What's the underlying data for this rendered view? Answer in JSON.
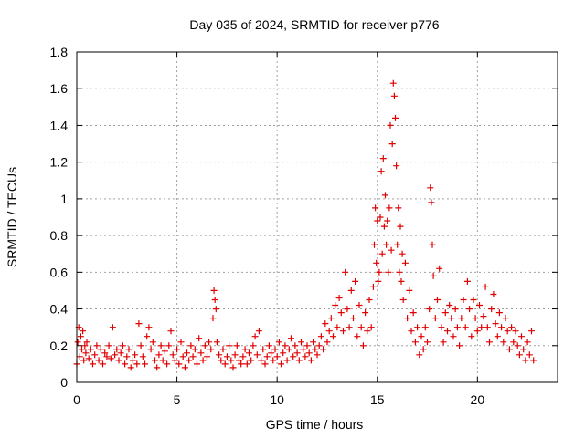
{
  "chart_data": {
    "type": "scatter",
    "title": "Day 035 of 2024, SRMTID for receiver p776",
    "xlabel": "GPS time / hours",
    "ylabel": "SRMTID / TECUs",
    "xlim": [
      0,
      24
    ],
    "ylim": [
      0,
      1.8
    ],
    "xticks": [
      "0",
      "5",
      "10",
      "15",
      "20"
    ],
    "xtick_values": [
      0,
      5,
      10,
      15,
      20
    ],
    "yticks": [
      "0",
      "0.2",
      "0.4",
      "0.6",
      "0.8",
      "1",
      "1.2",
      "1.4",
      "1.6",
      "1.8"
    ],
    "ytick_values": [
      0,
      0.2,
      0.4,
      0.6,
      0.8,
      1.0,
      1.2,
      1.4,
      1.6,
      1.8
    ],
    "grid": true,
    "marker": "+",
    "marker_color": "#e00000",
    "series": [
      {
        "name": "SRMTID",
        "points": [
          [
            0.0,
            0.1
          ],
          [
            0.05,
            0.22
          ],
          [
            0.1,
            0.3
          ],
          [
            0.15,
            0.14
          ],
          [
            0.2,
            0.25
          ],
          [
            0.25,
            0.18
          ],
          [
            0.3,
            0.28
          ],
          [
            0.35,
            0.12
          ],
          [
            0.4,
            0.2
          ],
          [
            0.45,
            0.16
          ],
          [
            0.5,
            0.22
          ],
          [
            0.6,
            0.13
          ],
          [
            0.7,
            0.18
          ],
          [
            0.8,
            0.1
          ],
          [
            0.9,
            0.15
          ],
          [
            1.0,
            0.2
          ],
          [
            1.1,
            0.12
          ],
          [
            1.2,
            0.18
          ],
          [
            1.3,
            0.1
          ],
          [
            1.4,
            0.16
          ],
          [
            1.5,
            0.14
          ],
          [
            1.6,
            0.2
          ],
          [
            1.7,
            0.13
          ],
          [
            1.8,
            0.3
          ],
          [
            1.9,
            0.15
          ],
          [
            2.0,
            0.18
          ],
          [
            2.1,
            0.12
          ],
          [
            2.2,
            0.16
          ],
          [
            2.3,
            0.2
          ],
          [
            2.4,
            0.1
          ],
          [
            2.5,
            0.14
          ],
          [
            2.6,
            0.18
          ],
          [
            2.7,
            0.08
          ],
          [
            2.8,
            0.12
          ],
          [
            2.9,
            0.15
          ],
          [
            3.0,
            0.1
          ],
          [
            3.1,
            0.32
          ],
          [
            3.2,
            0.2
          ],
          [
            3.3,
            0.14
          ],
          [
            3.4,
            0.1
          ],
          [
            3.5,
            0.25
          ],
          [
            3.6,
            0.3
          ],
          [
            3.7,
            0.18
          ],
          [
            3.8,
            0.22
          ],
          [
            3.9,
            0.12
          ],
          [
            4.0,
            0.08
          ],
          [
            4.1,
            0.15
          ],
          [
            4.2,
            0.2
          ],
          [
            4.3,
            0.12
          ],
          [
            4.4,
            0.17
          ],
          [
            4.5,
            0.1
          ],
          [
            4.6,
            0.2
          ],
          [
            4.7,
            0.28
          ],
          [
            4.8,
            0.15
          ],
          [
            4.9,
            0.12
          ],
          [
            5.0,
            0.18
          ],
          [
            5.1,
            0.1
          ],
          [
            5.2,
            0.22
          ],
          [
            5.3,
            0.14
          ],
          [
            5.4,
            0.08
          ],
          [
            5.5,
            0.16
          ],
          [
            5.6,
            0.12
          ],
          [
            5.7,
            0.2
          ],
          [
            5.8,
            0.14
          ],
          [
            5.9,
            0.18
          ],
          [
            6.0,
            0.1
          ],
          [
            6.1,
            0.24
          ],
          [
            6.2,
            0.16
          ],
          [
            6.3,
            0.12
          ],
          [
            6.4,
            0.2
          ],
          [
            6.5,
            0.14
          ],
          [
            6.6,
            0.22
          ],
          [
            6.7,
            0.18
          ],
          [
            6.8,
            0.35
          ],
          [
            6.85,
            0.5
          ],
          [
            6.9,
            0.45
          ],
          [
            6.95,
            0.4
          ],
          [
            7.0,
            0.22
          ],
          [
            7.1,
            0.15
          ],
          [
            7.2,
            0.12
          ],
          [
            7.3,
            0.18
          ],
          [
            7.4,
            0.1
          ],
          [
            7.5,
            0.14
          ],
          [
            7.6,
            0.2
          ],
          [
            7.7,
            0.12
          ],
          [
            7.8,
            0.08
          ],
          [
            7.9,
            0.15
          ],
          [
            8.0,
            0.2
          ],
          [
            8.1,
            0.12
          ],
          [
            8.2,
            0.1
          ],
          [
            8.3,
            0.14
          ],
          [
            8.4,
            0.18
          ],
          [
            8.5,
            0.1
          ],
          [
            8.6,
            0.16
          ],
          [
            8.7,
            0.12
          ],
          [
            8.8,
            0.2
          ],
          [
            8.9,
            0.25
          ],
          [
            9.0,
            0.15
          ],
          [
            9.1,
            0.28
          ],
          [
            9.2,
            0.12
          ],
          [
            9.3,
            0.18
          ],
          [
            9.4,
            0.1
          ],
          [
            9.5,
            0.14
          ],
          [
            9.6,
            0.2
          ],
          [
            9.7,
            0.16
          ],
          [
            9.8,
            0.12
          ],
          [
            9.9,
            0.18
          ],
          [
            10.0,
            0.14
          ],
          [
            10.1,
            0.22
          ],
          [
            10.2,
            0.1
          ],
          [
            10.3,
            0.16
          ],
          [
            10.4,
            0.2
          ],
          [
            10.5,
            0.12
          ],
          [
            10.6,
            0.18
          ],
          [
            10.7,
            0.24
          ],
          [
            10.8,
            0.14
          ],
          [
            10.9,
            0.2
          ],
          [
            11.0,
            0.16
          ],
          [
            11.1,
            0.12
          ],
          [
            11.2,
            0.22
          ],
          [
            11.3,
            0.18
          ],
          [
            11.4,
            0.14
          ],
          [
            11.5,
            0.2
          ],
          [
            11.6,
            0.16
          ],
          [
            11.7,
            0.12
          ],
          [
            11.8,
            0.22
          ],
          [
            11.9,
            0.18
          ],
          [
            12.0,
            0.15
          ],
          [
            12.1,
            0.2
          ],
          [
            12.2,
            0.25
          ],
          [
            12.3,
            0.18
          ],
          [
            12.4,
            0.32
          ],
          [
            12.5,
            0.22
          ],
          [
            12.6,
            0.28
          ],
          [
            12.7,
            0.35
          ],
          [
            12.8,
            0.25
          ],
          [
            12.9,
            0.42
          ],
          [
            13.0,
            0.3
          ],
          [
            13.1,
            0.46
          ],
          [
            13.2,
            0.38
          ],
          [
            13.3,
            0.28
          ],
          [
            13.4,
            0.6
          ],
          [
            13.5,
            0.4
          ],
          [
            13.6,
            0.3
          ],
          [
            13.7,
            0.5
          ],
          [
            13.8,
            0.35
          ],
          [
            13.9,
            0.55
          ],
          [
            14.0,
            0.25
          ],
          [
            14.1,
            0.42
          ],
          [
            14.2,
            0.3
          ],
          [
            14.3,
            0.2
          ],
          [
            14.4,
            0.38
          ],
          [
            14.5,
            0.28
          ],
          [
            14.6,
            0.45
          ],
          [
            14.7,
            0.3
          ],
          [
            14.8,
            0.52
          ],
          [
            14.85,
            0.75
          ],
          [
            14.9,
            0.95
          ],
          [
            14.95,
            0.65
          ],
          [
            15.0,
            0.88
          ],
          [
            15.05,
            0.55
          ],
          [
            15.1,
            0.6
          ],
          [
            15.15,
            0.9
          ],
          [
            15.2,
            1.15
          ],
          [
            15.25,
            0.7
          ],
          [
            15.3,
            1.22
          ],
          [
            15.35,
            0.85
          ],
          [
            15.4,
            1.02
          ],
          [
            15.45,
            0.75
          ],
          [
            15.5,
            0.88
          ],
          [
            15.55,
            0.6
          ],
          [
            15.6,
            0.95
          ],
          [
            15.65,
            1.4
          ],
          [
            15.7,
            0.72
          ],
          [
            15.75,
            1.3
          ],
          [
            15.8,
            1.63
          ],
          [
            15.85,
            1.56
          ],
          [
            15.9,
            1.44
          ],
          [
            15.95,
            1.18
          ],
          [
            16.0,
            0.75
          ],
          [
            16.05,
            0.95
          ],
          [
            16.1,
            0.6
          ],
          [
            16.15,
            0.85
          ],
          [
            16.2,
            0.55
          ],
          [
            16.25,
            0.7
          ],
          [
            16.3,
            0.45
          ],
          [
            16.4,
            0.65
          ],
          [
            16.5,
            0.35
          ],
          [
            16.6,
            0.5
          ],
          [
            16.7,
            0.28
          ],
          [
            16.8,
            0.38
          ],
          [
            16.9,
            0.22
          ],
          [
            17.0,
            0.3
          ],
          [
            17.1,
            0.15
          ],
          [
            17.2,
            0.25
          ],
          [
            17.3,
            0.18
          ],
          [
            17.4,
            0.3
          ],
          [
            17.5,
            0.22
          ],
          [
            17.6,
            0.4
          ],
          [
            17.65,
            1.06
          ],
          [
            17.7,
            0.98
          ],
          [
            17.75,
            0.75
          ],
          [
            17.8,
            0.58
          ],
          [
            17.9,
            0.35
          ],
          [
            18.0,
            0.45
          ],
          [
            18.1,
            0.62
          ],
          [
            18.2,
            0.3
          ],
          [
            18.3,
            0.22
          ],
          [
            18.4,
            0.38
          ],
          [
            18.5,
            0.28
          ],
          [
            18.6,
            0.42
          ],
          [
            18.7,
            0.35
          ],
          [
            18.8,
            0.25
          ],
          [
            18.9,
            0.4
          ],
          [
            19.0,
            0.3
          ],
          [
            19.1,
            0.2
          ],
          [
            19.2,
            0.35
          ],
          [
            19.3,
            0.45
          ],
          [
            19.4,
            0.3
          ],
          [
            19.5,
            0.55
          ],
          [
            19.6,
            0.4
          ],
          [
            19.7,
            0.25
          ],
          [
            19.8,
            0.45
          ],
          [
            19.9,
            0.35
          ],
          [
            20.0,
            0.28
          ],
          [
            20.1,
            0.42
          ],
          [
            20.2,
            0.3
          ],
          [
            20.3,
            0.36
          ],
          [
            20.4,
            0.52
          ],
          [
            20.5,
            0.3
          ],
          [
            20.6,
            0.22
          ],
          [
            20.7,
            0.4
          ],
          [
            20.8,
            0.48
          ],
          [
            20.9,
            0.32
          ],
          [
            21.0,
            0.25
          ],
          [
            21.1,
            0.38
          ],
          [
            21.2,
            0.3
          ],
          [
            21.3,
            0.22
          ],
          [
            21.4,
            0.35
          ],
          [
            21.5,
            0.28
          ],
          [
            21.6,
            0.18
          ],
          [
            21.7,
            0.3
          ],
          [
            21.8,
            0.22
          ],
          [
            21.9,
            0.28
          ],
          [
            22.0,
            0.2
          ],
          [
            22.1,
            0.15
          ],
          [
            22.2,
            0.25
          ],
          [
            22.3,
            0.18
          ],
          [
            22.4,
            0.12
          ],
          [
            22.5,
            0.22
          ],
          [
            22.6,
            0.15
          ],
          [
            22.7,
            0.28
          ],
          [
            22.8,
            0.12
          ]
        ]
      }
    ]
  }
}
